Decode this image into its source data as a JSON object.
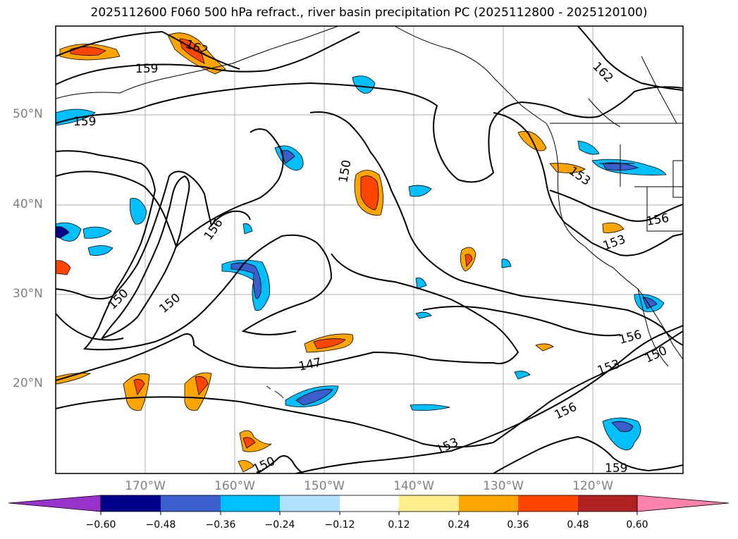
{
  "title": "2025112600 F060 500 hPa refract., river basin precipitation PC (2025112800 - 2025120100)",
  "map": {
    "lat_labels": [
      "50°N",
      "40°N",
      "30°N",
      "20°N"
    ],
    "lon_labels": [
      "170°W",
      "160°W",
      "150°W",
      "140°W",
      "130°W",
      "120°W"
    ],
    "contour_labels": [
      "162",
      "159",
      "159",
      "150",
      "156",
      "150",
      "150",
      "147",
      "153",
      "156",
      "153",
      "156",
      "153",
      "150",
      "156",
      "153",
      "162",
      "159",
      "150"
    ]
  },
  "colorbar": {
    "tick_labels": [
      "−0.60",
      "−0.48",
      "−0.36",
      "−0.24",
      "−0.12",
      "0.12",
      "0.24",
      "0.36",
      "0.48",
      "0.60"
    ],
    "colors": [
      "#9932cc",
      "#00008b",
      "#3a5fcd",
      "#00bfff",
      "#b0e2ff",
      "#ffffff",
      "#ffec8b",
      "#ffa500",
      "#ff4500",
      "#b22222",
      "#ff82ab"
    ]
  }
}
